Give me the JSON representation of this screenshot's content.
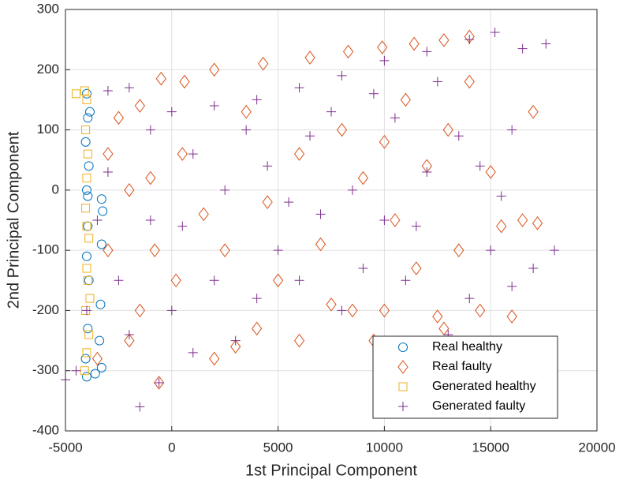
{
  "chart_data": {
    "type": "scatter",
    "x_label": "1st Principal Component",
    "y_label": "2nd Principal Component",
    "xlim": [
      -5000,
      20000
    ],
    "xticks": [
      -5000,
      0,
      5000,
      10000,
      15000,
      20000
    ],
    "ylim": [
      -400,
      300
    ],
    "yticks": [
      -400,
      -300,
      -200,
      -100,
      0,
      100,
      200,
      300
    ],
    "grid": true,
    "legend": "lower right",
    "series": [
      {
        "name": "Real healthy",
        "color": "#0072BD",
        "marker": "circle",
        "x": [
          -4000,
          -3950,
          -4050,
          -3900,
          -4000,
          -3300,
          -3250,
          -3300,
          -3950,
          -4000,
          -3900,
          -3350,
          -3400,
          -3950,
          -4050,
          -3600,
          -3300,
          -4000,
          -3850,
          -3950
        ],
        "values": [
          160,
          120,
          80,
          40,
          0,
          -15,
          -35,
          -90,
          -60,
          -110,
          -150,
          -190,
          -250,
          -230,
          -280,
          -305,
          -295,
          -310,
          130,
          -10
        ]
      },
      {
        "name": "Real faulty",
        "color": "#D95319",
        "marker": "diamond",
        "x": [
          2000,
          4300,
          6500,
          8300,
          9900,
          11400,
          12800,
          14000,
          -500,
          -1500,
          -2500,
          -3000,
          -1000,
          500,
          1500,
          2500,
          3500,
          4500,
          5000,
          6000,
          7000,
          8000,
          8500,
          9000,
          9500,
          10000,
          10500,
          11000,
          11500,
          12000,
          12500,
          13000,
          13500,
          14000,
          14500,
          15000,
          15500,
          16000,
          16500,
          17000,
          17200,
          3000,
          6000,
          -2000,
          -3500,
          -600,
          -1500,
          200,
          2000,
          4000,
          7500,
          10000,
          12800,
          -3000,
          -2000,
          -800,
          600
        ],
        "values": [
          200,
          210,
          220,
          230,
          237,
          243,
          249,
          255,
          185,
          140,
          120,
          60,
          20,
          60,
          -40,
          -100,
          130,
          -20,
          -150,
          60,
          -90,
          100,
          -200,
          20,
          -250,
          80,
          -50,
          150,
          -130,
          40,
          -210,
          100,
          -100,
          180,
          -200,
          30,
          -60,
          -210,
          -50,
          130,
          -55,
          -260,
          -250,
          -250,
          -280,
          -320,
          -200,
          -150,
          -280,
          -230,
          -190,
          -200,
          -230,
          -100,
          0,
          -100,
          180
        ]
      },
      {
        "name": "Generated healthy",
        "color": "#EDB120",
        "marker": "square",
        "x": [
          -4500,
          -4100,
          -4000,
          -4050,
          -3950,
          -4000,
          -4050,
          -3900,
          -4000,
          -3950,
          -4050,
          -3900,
          -4000,
          -4100,
          -3850,
          -4000
        ],
        "values": [
          160,
          165,
          150,
          100,
          60,
          20,
          -30,
          -80,
          -130,
          -150,
          -200,
          -240,
          -270,
          -300,
          -180,
          -60
        ]
      },
      {
        "name": "Generated faulty",
        "color": "#7E2F8E",
        "marker": "plus",
        "x": [
          -5000,
          -4500,
          -1500,
          -600,
          -2000,
          0,
          1000,
          2000,
          3000,
          4000,
          5000,
          6000,
          7000,
          8000,
          9000,
          10000,
          11000,
          12000,
          13000,
          14000,
          15000,
          16000,
          17000,
          18000,
          17600,
          16500,
          15200,
          14000,
          12000,
          10000,
          8000,
          6000,
          4000,
          2000,
          0,
          -2000,
          -3000,
          -1000,
          1000,
          2500,
          3500,
          4500,
          5500,
          6500,
          7500,
          8500,
          9500,
          10500,
          11500,
          12500,
          13500,
          14500,
          15500,
          16000,
          -3500,
          -2500,
          -1000,
          500,
          -3000,
          -4000
        ],
        "values": [
          -315,
          -300,
          -360,
          -320,
          -240,
          -200,
          -270,
          -150,
          -250,
          -180,
          -100,
          -150,
          -40,
          -200,
          -130,
          -50,
          -150,
          30,
          -240,
          -180,
          -100,
          -160,
          -130,
          -100,
          243,
          235,
          262,
          250,
          230,
          215,
          190,
          170,
          150,
          140,
          130,
          170,
          165,
          100,
          60,
          0,
          100,
          40,
          -20,
          90,
          130,
          0,
          160,
          120,
          -60,
          180,
          90,
          40,
          -10,
          100,
          -50,
          -150,
          -50,
          -60,
          30,
          -200
        ]
      }
    ]
  }
}
